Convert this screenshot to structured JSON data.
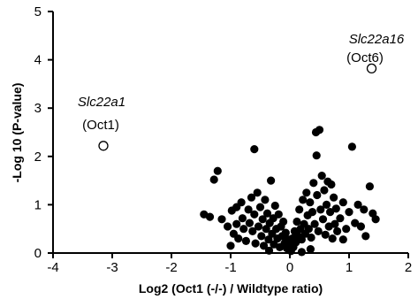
{
  "chart_data": {
    "type": "scatter",
    "title": "",
    "xlabel": "Log2 (Oct1 (-/-) / Wildtype ratio)",
    "ylabel": "-Log 10 (P-value)",
    "xlim": [
      -4,
      2
    ],
    "ylim": [
      0,
      5
    ],
    "x_ticks": [
      "-4",
      "-3",
      "-2",
      "-1",
      "0",
      "1",
      "2"
    ],
    "y_ticks": [
      "0",
      "1",
      "2",
      "3",
      "4",
      "5"
    ],
    "grid": false,
    "legend": "none",
    "colors": {
      "points": "#000000",
      "axis": "#000000"
    },
    "annotations": [
      {
        "gene": "Slc22a1",
        "protein": "(Oct1)"
      },
      {
        "gene": "Slc22a16",
        "protein": "(Oct6)"
      }
    ],
    "highlighted_points": [
      {
        "x": -3.15,
        "y": 2.22,
        "label": "Slc22a1 (Oct1)",
        "marker": "open-circle"
      },
      {
        "x": 1.38,
        "y": 3.82,
        "label": "Slc22a16 (Oct6)",
        "marker": "open-circle"
      }
    ],
    "points": [
      [
        -1.45,
        0.8
      ],
      [
        -1.35,
        0.75
      ],
      [
        -1.28,
        1.52
      ],
      [
        -1.22,
        1.7
      ],
      [
        -1.15,
        0.7
      ],
      [
        -1.05,
        0.55
      ],
      [
        -0.98,
        0.88
      ],
      [
        -0.95,
        0.4
      ],
      [
        -0.9,
        0.6
      ],
      [
        -0.87,
        0.3
      ],
      [
        -0.82,
        1.05
      ],
      [
        -0.8,
        0.72
      ],
      [
        -0.78,
        0.5
      ],
      [
        -0.74,
        0.25
      ],
      [
        -0.7,
        0.9
      ],
      [
        -0.68,
        0.62
      ],
      [
        -0.65,
        1.15
      ],
      [
        -0.63,
        0.45
      ],
      [
        -0.6,
        0.8
      ],
      [
        -0.58,
        0.2
      ],
      [
        -0.55,
        1.25
      ],
      [
        -0.53,
        0.55
      ],
      [
        -0.5,
        0.95
      ],
      [
        -0.48,
        0.35
      ],
      [
        -0.46,
        0.7
      ],
      [
        -0.44,
        0.15
      ],
      [
        -0.42,
        1.1
      ],
      [
        -0.4,
        0.5
      ],
      [
        -0.38,
        0.82
      ],
      [
        -0.36,
        0.28
      ],
      [
        -0.34,
        0.62
      ],
      [
        -0.32,
        1.5
      ],
      [
        -0.3,
        0.4
      ],
      [
        -0.28,
        0.72
      ],
      [
        -0.27,
        0.18
      ],
      [
        -0.25,
        0.98
      ],
      [
        -0.23,
        0.5
      ],
      [
        -0.21,
        0.3
      ],
      [
        -0.19,
        0.8
      ],
      [
        -0.17,
        0.12
      ],
      [
        -0.15,
        0.55
      ],
      [
        -0.13,
        0.35
      ],
      [
        -0.11,
        0.65
      ],
      [
        -0.09,
        0.2
      ],
      [
        -0.07,
        0.42
      ],
      [
        -0.05,
        0.1
      ],
      [
        -0.03,
        0.28
      ],
      [
        -0.01,
        0.06
      ],
      [
        0.0,
        0.18
      ],
      [
        0.02,
        0.04
      ],
      [
        0.04,
        0.3
      ],
      [
        0.06,
        0.12
      ],
      [
        0.08,
        0.45
      ],
      [
        0.1,
        0.22
      ],
      [
        0.12,
        0.65
      ],
      [
        0.14,
        0.35
      ],
      [
        0.16,
        0.9
      ],
      [
        0.18,
        0.5
      ],
      [
        0.2,
        0.28
      ],
      [
        0.22,
        1.1
      ],
      [
        0.24,
        0.6
      ],
      [
        0.26,
        0.4
      ],
      [
        0.28,
        1.25
      ],
      [
        0.3,
        0.78
      ],
      [
        0.32,
        0.5
      ],
      [
        0.34,
        1.05
      ],
      [
        0.36,
        0.32
      ],
      [
        0.38,
        0.85
      ],
      [
        0.4,
        1.45
      ],
      [
        0.42,
        0.6
      ],
      [
        0.44,
        2.5
      ],
      [
        0.45,
        2.02
      ],
      [
        0.46,
        1.2
      ],
      [
        0.48,
        0.45
      ],
      [
        0.5,
        2.55
      ],
      [
        0.52,
        0.9
      ],
      [
        0.54,
        1.6
      ],
      [
        0.56,
        0.7
      ],
      [
        0.58,
        1.3
      ],
      [
        0.6,
        0.38
      ],
      [
        0.62,
        1.0
      ],
      [
        0.64,
        1.48
      ],
      [
        0.66,
        0.55
      ],
      [
        0.68,
        0.85
      ],
      [
        0.7,
        1.42
      ],
      [
        0.72,
        0.3
      ],
      [
        0.74,
        1.15
      ],
      [
        0.76,
        0.6
      ],
      [
        0.78,
        0.92
      ],
      [
        0.8,
        0.45
      ],
      [
        0.85,
        0.72
      ],
      [
        0.9,
        1.05
      ],
      [
        0.95,
        0.5
      ],
      [
        1.0,
        0.85
      ],
      [
        1.05,
        2.2
      ],
      [
        1.1,
        0.62
      ],
      [
        1.15,
        1.0
      ],
      [
        1.2,
        0.55
      ],
      [
        1.25,
        0.9
      ],
      [
        1.35,
        1.38
      ],
      [
        1.4,
        0.82
      ],
      [
        1.45,
        0.7
      ],
      [
        -0.6,
        2.15
      ],
      [
        -1.0,
        0.15
      ],
      [
        0.2,
        0.02
      ],
      [
        -0.35,
        0.05
      ],
      [
        0.35,
        0.08
      ],
      [
        -0.9,
        0.95
      ],
      [
        0.9,
        0.28
      ],
      [
        1.28,
        0.35
      ]
    ]
  }
}
